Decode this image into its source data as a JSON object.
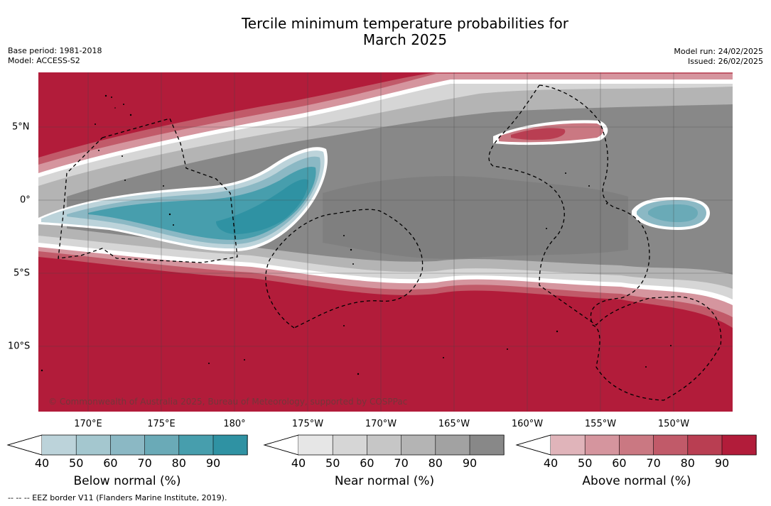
{
  "title_line1": "Tercile minimum temperature probabilities for",
  "title_line2": "March 2025",
  "base_period": "Base period: 1981-2018",
  "model": "Model: ACCESS-S2",
  "model_run": "Model run: 24/02/2025",
  "issued": "Issued: 26/02/2025",
  "copyright": "© Commonwealth of Australia 2025, Bureau of Meteorology, supported by COSPPac",
  "footnote": "--  --  -- EEZ border V11 (Flanders Marine Institute, 2019).",
  "lon_labels": [
    "170°E",
    "175°E",
    "180°",
    "175°W",
    "170°W",
    "165°W",
    "160°W",
    "155°W",
    "150°W"
  ],
  "lat_labels": [
    "5°N",
    "0°",
    "5°S",
    "10°S"
  ],
  "colorbars": [
    {
      "title": "Below normal (%)",
      "ticks": [
        "40",
        "50",
        "60",
        "70",
        "80",
        "90"
      ],
      "colors": [
        "#bcd3da",
        "#a4c7cf",
        "#8bb8c4",
        "#6aaab7",
        "#479ead",
        "#2f92a3"
      ]
    },
    {
      "title": "Near normal (%)",
      "ticks": [
        "40",
        "50",
        "60",
        "70",
        "80",
        "90"
      ],
      "colors": [
        "#e6e6e6",
        "#d6d6d6",
        "#c6c6c6",
        "#b4b4b4",
        "#a2a2a2",
        "#888888"
      ]
    },
    {
      "title": "Above normal (%)",
      "ticks": [
        "40",
        "50",
        "60",
        "70",
        "80",
        "90"
      ],
      "colors": [
        "#e0b4ba",
        "#d5959e",
        "#ca7882",
        "#c15a69",
        "#b93e52",
        "#b21c3a"
      ]
    }
  ]
}
